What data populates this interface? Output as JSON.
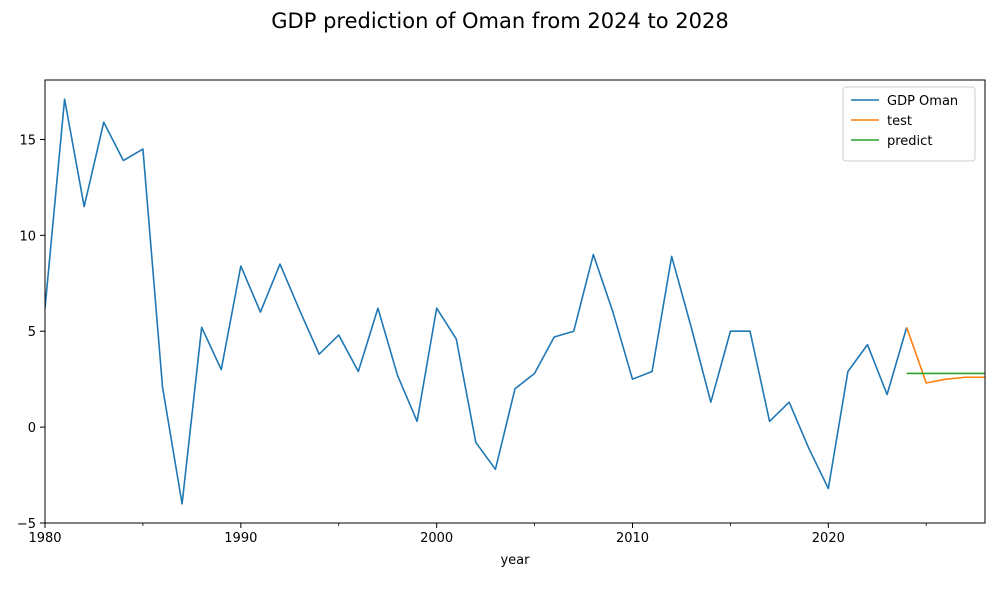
{
  "chart_data": {
    "type": "line",
    "title": "GDP prediction of Oman from 2024 to 2028",
    "xlabel": "year",
    "ylabel": "",
    "xlim": [
      1980,
      2028
    ],
    "ylim": [
      -5,
      18.1
    ],
    "x_ticks": [
      1980,
      1990,
      2000,
      2010,
      2020
    ],
    "x_tick_labels": [
      "1980",
      "1990",
      "2000",
      "2010",
      "2020"
    ],
    "y_ticks": [
      -5,
      0,
      5,
      10,
      15
    ],
    "y_tick_labels": [
      "−5",
      "0",
      "5",
      "10",
      "15"
    ],
    "grid": false,
    "legend_position": "top-right",
    "series": [
      {
        "name": "GDP Oman",
        "color": "#1f77b4",
        "x": [
          1980,
          1981,
          1982,
          1983,
          1984,
          1985,
          1986,
          1987,
          1988,
          1989,
          1990,
          1991,
          1992,
          1993,
          1994,
          1995,
          1996,
          1997,
          1998,
          1999,
          2000,
          2001,
          2002,
          2003,
          2004,
          2005,
          2006,
          2007,
          2008,
          2009,
          2010,
          2011,
          2012,
          2013,
          2014,
          2015,
          2016,
          2017,
          2018,
          2019,
          2020,
          2021,
          2022,
          2023,
          2024
        ],
        "values": [
          6.2,
          17.1,
          11.5,
          15.9,
          13.9,
          14.5,
          2.1,
          -4.0,
          5.2,
          3.0,
          8.4,
          6.0,
          8.5,
          6.1,
          3.8,
          4.8,
          2.9,
          6.2,
          2.7,
          0.3,
          6.2,
          4.6,
          -0.8,
          -2.2,
          2.0,
          2.8,
          4.7,
          5.0,
          9.0,
          6.0,
          2.5,
          2.9,
          8.9,
          5.2,
          1.3,
          5.0,
          5.0,
          0.3,
          1.3,
          -1.1,
          -3.2,
          2.9,
          4.3,
          1.7,
          5.2
        ]
      },
      {
        "name": "test",
        "color": "#ff7f0e",
        "x": [
          2024,
          2025,
          2026,
          2027,
          2028
        ],
        "values": [
          5.2,
          2.3,
          2.5,
          2.6,
          2.6
        ]
      },
      {
        "name": "predict",
        "color": "#2ca02c",
        "x": [
          2024,
          2025,
          2026,
          2027,
          2028
        ],
        "values": [
          2.8,
          2.8,
          2.8,
          2.8,
          2.8
        ]
      }
    ]
  }
}
